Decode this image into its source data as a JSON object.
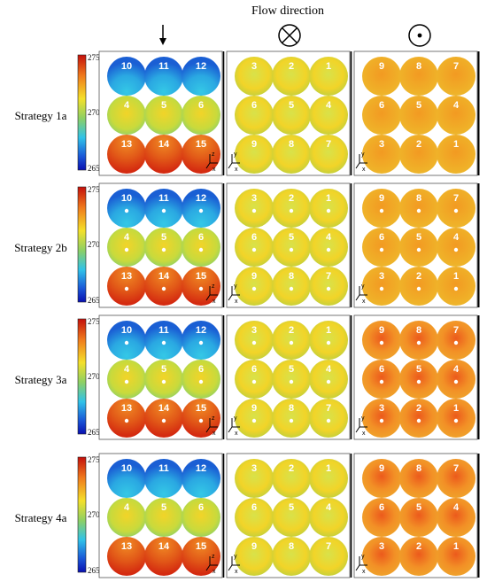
{
  "header": {
    "title": "Flow direction",
    "view_symbols": [
      "down-arrow-icon",
      "into-page-icon",
      "out-of-page-icon"
    ]
  },
  "colorbar": {
    "max": "275",
    "mid": "270",
    "min": "265"
  },
  "views": [
    {
      "numbers": [
        [
          "10",
          "11",
          "12"
        ],
        [
          "4",
          "5",
          "6"
        ],
        [
          "13",
          "14",
          "15"
        ]
      ],
      "axis": [
        "z",
        "x"
      ]
    },
    {
      "numbers": [
        [
          "3",
          "2",
          "1"
        ],
        [
          "6",
          "5",
          "4"
        ],
        [
          "9",
          "8",
          "7"
        ]
      ],
      "axis": [
        "y",
        "x"
      ]
    },
    {
      "numbers": [
        [
          "9",
          "8",
          "7"
        ],
        [
          "6",
          "5",
          "4"
        ],
        [
          "3",
          "2",
          "1"
        ]
      ],
      "axis": [
        "y",
        "x"
      ]
    }
  ],
  "strategies": [
    {
      "label": "Strategy 1a",
      "probes": false
    },
    {
      "label": "Strategy 2b",
      "probes": true
    },
    {
      "label": "Strategy 3a",
      "probes": true
    },
    {
      "label": "Strategy 4a",
      "probes": false
    }
  ],
  "colors": {
    "hot": "#d42a10",
    "orange": "#f08a24",
    "yellow": "#f2d428",
    "green": "#9ccc52",
    "cyan": "#34c8e6",
    "blue": "#1a5fd4"
  }
}
